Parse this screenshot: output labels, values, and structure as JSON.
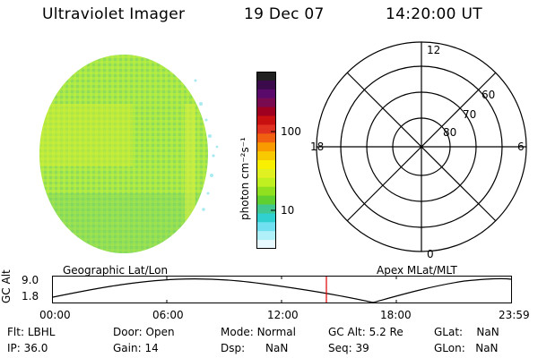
{
  "header": {
    "instrument": "Ultraviolet Imager",
    "date": "19 Dec 07",
    "time": "14:20:00 UT"
  },
  "colorbar": {
    "unit_label": "photon cm⁻²s⁻¹",
    "ticks": [
      "100",
      "10"
    ],
    "colors": [
      "#202020",
      "#3a0a4a",
      "#5a0a6a",
      "#7a0a50",
      "#a00020",
      "#c81010",
      "#e03020",
      "#f06010",
      "#f89a00",
      "#f8c800",
      "#f8f000",
      "#e0f020",
      "#c0f020",
      "#90e020",
      "#60d030",
      "#40c890",
      "#30d0d0",
      "#70e0f0",
      "#b0f0f8",
      "#e8f8ff"
    ]
  },
  "image": {
    "fill_color": "#a8e848",
    "accent_color": "#7cd650"
  },
  "polar": {
    "mlt_labels": {
      "top": "12",
      "bottom": "0",
      "left": "18",
      "right": "6"
    },
    "lat_labels": [
      "60",
      "70",
      "80"
    ]
  },
  "timeline": {
    "left_title": "Geographic Lat/Lon",
    "right_title": "Apex MLat/MLT",
    "axis_label": "GC Alt",
    "y_ticks": [
      "9.0",
      "1.8"
    ],
    "x_ticks": [
      "00:00",
      "06:00",
      "12:00",
      "18:00",
      "23:59"
    ],
    "marker_color": "#e00000"
  },
  "info": {
    "row1": [
      {
        "label": "Flt:",
        "value": "LBHL"
      },
      {
        "label": "Door:",
        "value": "Open"
      },
      {
        "label": "Mode:",
        "value": "Normal"
      },
      {
        "label": "GC Alt:",
        "value": "5.2 Re"
      },
      {
        "label": "GLat:",
        "value": "NaN"
      }
    ],
    "row2": [
      {
        "label": "IP:",
        "value": "36.0"
      },
      {
        "label": "Gain:",
        "value": "14"
      },
      {
        "label": "Dsp:",
        "value": "NaN"
      },
      {
        "label": "Seq:",
        "value": "39"
      },
      {
        "label": "GLon:",
        "value": "NaN"
      }
    ]
  }
}
